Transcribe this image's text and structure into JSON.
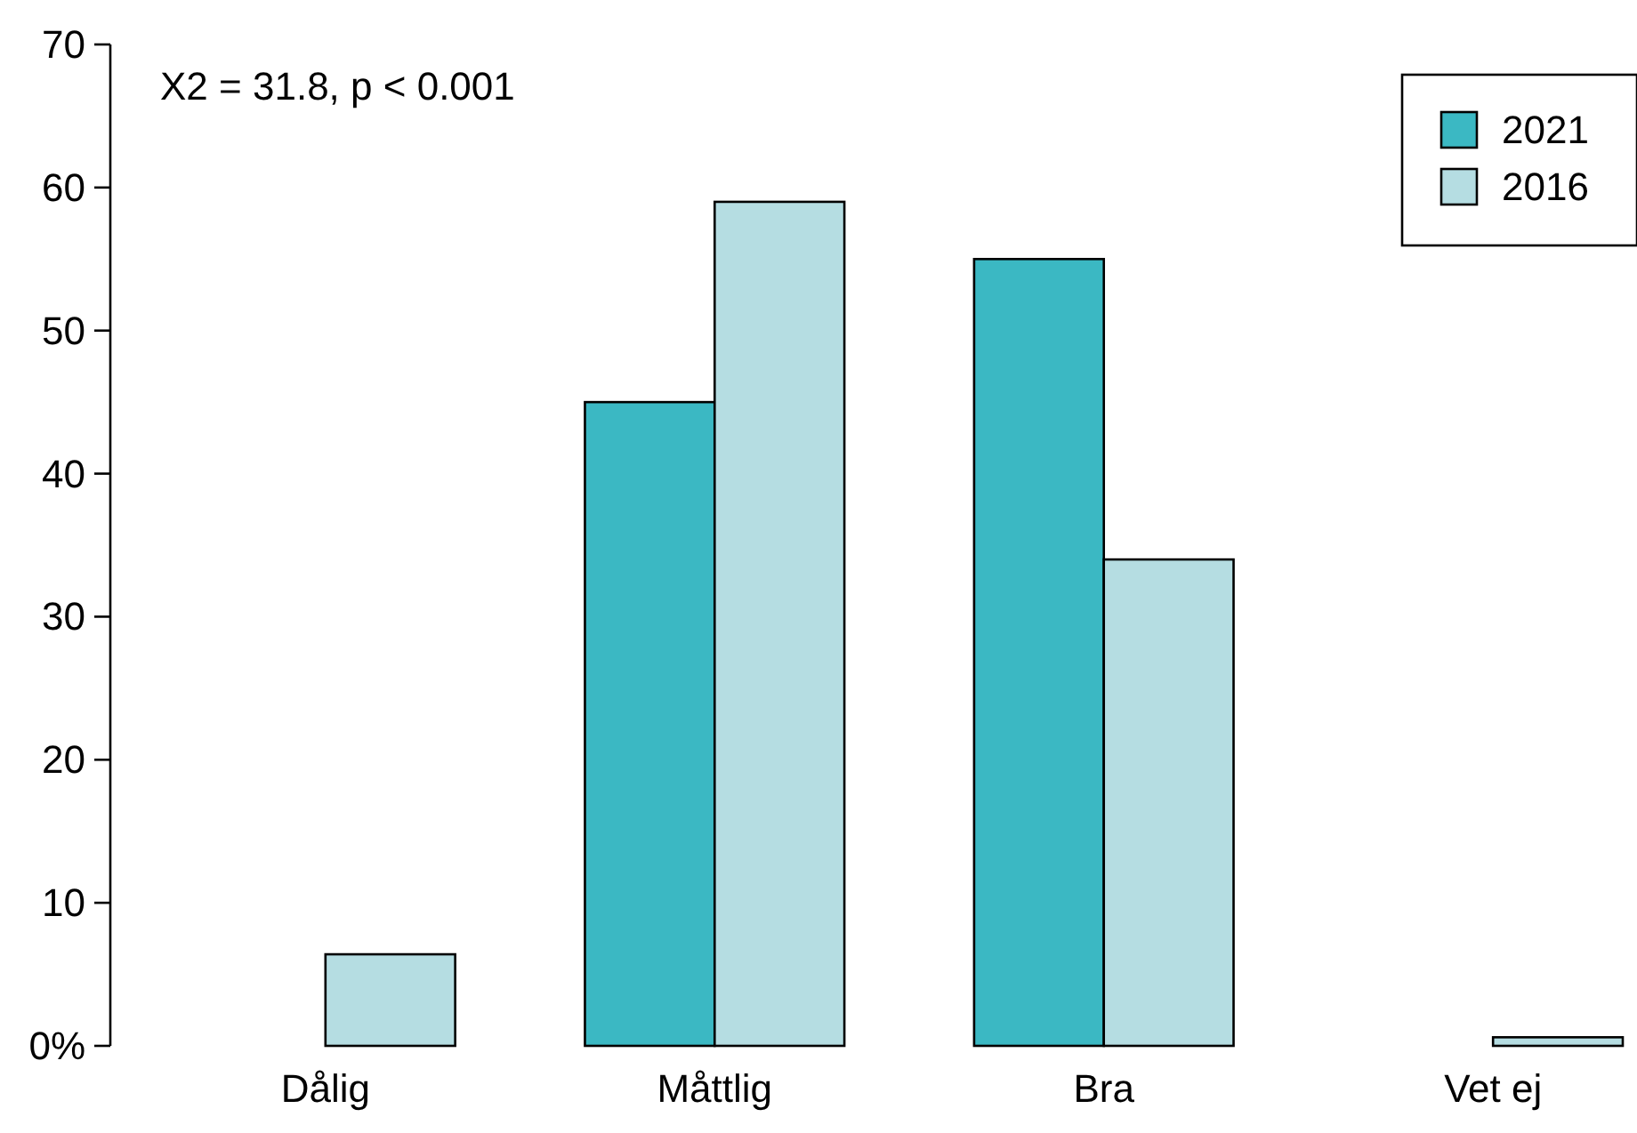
{
  "chart_data": {
    "type": "bar",
    "categories": [
      "Dålig",
      "Måttlig",
      "Bra",
      "Vet ej"
    ],
    "series": [
      {
        "name": "2021",
        "color": "#3bb8c3",
        "values": [
          0,
          45,
          55,
          0
        ]
      },
      {
        "name": "2016",
        "color": "#b5dde2",
        "values": [
          6.4,
          59,
          34,
          0.6
        ]
      }
    ],
    "ylim": [
      0,
      70
    ],
    "yticks": [
      {
        "value": 0,
        "label": "0%"
      },
      10,
      20,
      30,
      40,
      50,
      60,
      70
    ],
    "grid": false,
    "legend": "top right",
    "annotations": [
      "X2 = 31.8, p < 0.001"
    ]
  }
}
